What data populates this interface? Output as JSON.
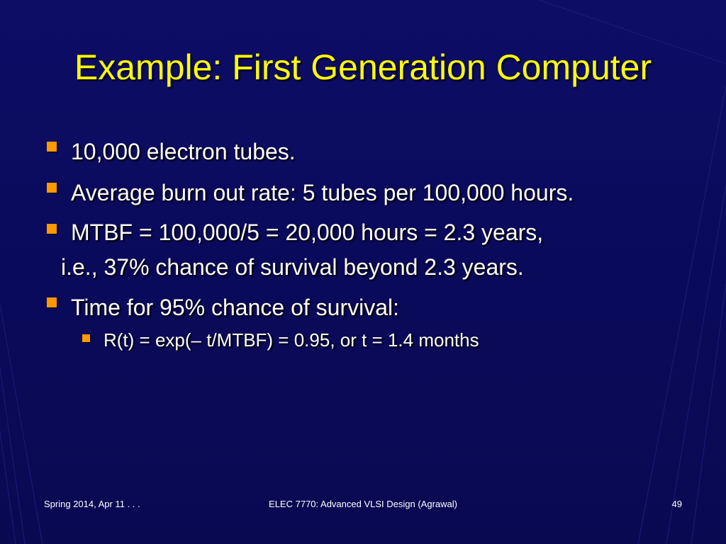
{
  "slide": {
    "title": "Example: First Generation Computer",
    "bullets": [
      {
        "text": "10,000 electron tubes."
      },
      {
        "text": "Average burn out rate: 5 tubes per 100,000 hours."
      },
      {
        "line1": "MTBF = 100,000/5 = 20,000 hours = 2.3 years,",
        "line2": "i.e., 37% chance of survival beyond 2.3 years."
      },
      {
        "text": "Time for 95% chance of survival:"
      }
    ],
    "sub_bullets": [
      {
        "text": "R(t) = exp(– t/MTBF) = 0.95, or t = 1.4 months"
      }
    ],
    "bullet_color": "#ff9900",
    "title_color": "#ffff00",
    "text_color": "#ffffff",
    "background_color": "#0b0b5c"
  },
  "footer": {
    "left": "Spring 2014, Apr 11 . . .",
    "center": "ELEC 7770: Advanced VLSI Design (Agrawal)",
    "page_number": "49"
  }
}
